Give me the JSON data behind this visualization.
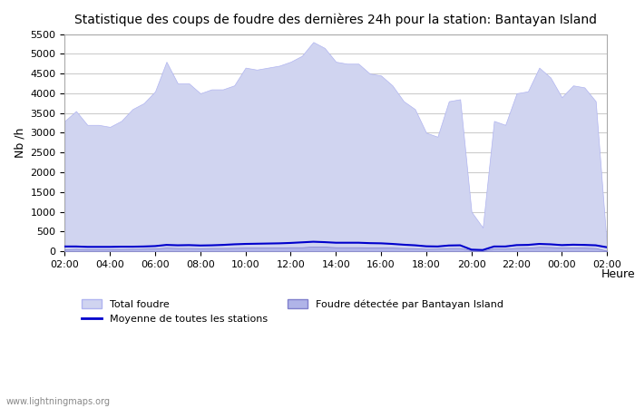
{
  "title": "Statistique des coups de foudre des dernières 24h pour la station: Bantayan Island",
  "ylabel": "Nb /h",
  "xlabel": "Heure",
  "ylim": [
    0,
    5500
  ],
  "yticks": [
    0,
    500,
    1000,
    1500,
    2000,
    2500,
    3000,
    3500,
    4000,
    4500,
    5000,
    5500
  ],
  "xtick_labels": [
    "02:00",
    "04:00",
    "06:00",
    "08:00",
    "10:00",
    "12:00",
    "14:00",
    "16:00",
    "18:00",
    "20:00",
    "22:00",
    "00:00",
    "02:00"
  ],
  "watermark": "www.lightningmaps.org",
  "bg_color": "#ffffff",
  "plot_bg_color": "#ffffff",
  "grid_color": "#cccccc",
  "fill_total_color": "#d0d4f0",
  "fill_detected_color": "#b0b4e8",
  "line_mean_color": "#0000cc",
  "fill_total_edge": "#b0b4f0",
  "fill_detected_edge": "#8080cc",
  "x_hours": [
    2,
    2.5,
    3,
    3.5,
    4,
    4.5,
    5,
    5.5,
    6,
    6.5,
    7,
    7.5,
    8,
    8.5,
    9,
    9.5,
    10,
    10.5,
    11,
    11.5,
    12,
    12.5,
    13,
    13.5,
    14,
    14.5,
    15,
    15.5,
    16,
    16.5,
    17,
    17.5,
    18,
    18.5,
    19,
    19.5,
    20,
    20.5,
    21,
    21.5,
    22,
    22.5,
    23,
    23.5,
    24,
    24.5,
    25,
    25.5,
    26
  ],
  "total_foudre": [
    3300,
    3550,
    3200,
    3200,
    3150,
    3300,
    3600,
    3750,
    4050,
    4800,
    4250,
    4250,
    4000,
    4100,
    4100,
    4200,
    4650,
    4600,
    4650,
    4700,
    4800,
    4950,
    5300,
    5150,
    4800,
    4750,
    4750,
    4500,
    4450,
    4200,
    3800,
    3600,
    3000,
    2900,
    3800,
    3850,
    1000,
    600,
    3300,
    3200,
    4000,
    4050,
    4650,
    4400,
    3900,
    4200,
    4150,
    3800,
    100
  ],
  "detected_foudre": [
    50,
    60,
    50,
    50,
    50,
    55,
    60,
    65,
    70,
    90,
    80,
    80,
    75,
    80,
    80,
    85,
    90,
    90,
    90,
    95,
    100,
    100,
    120,
    115,
    100,
    100,
    100,
    95,
    95,
    90,
    80,
    75,
    60,
    65,
    80,
    80,
    20,
    10,
    70,
    65,
    85,
    90,
    110,
    105,
    90,
    95,
    90,
    80,
    10
  ],
  "mean_stations": [
    120,
    120,
    110,
    110,
    110,
    115,
    115,
    120,
    130,
    160,
    150,
    155,
    145,
    150,
    160,
    175,
    185,
    190,
    195,
    200,
    210,
    225,
    240,
    230,
    215,
    215,
    215,
    205,
    200,
    185,
    165,
    150,
    125,
    120,
    145,
    150,
    40,
    30,
    120,
    120,
    155,
    160,
    185,
    175,
    155,
    165,
    160,
    150,
    100
  ]
}
